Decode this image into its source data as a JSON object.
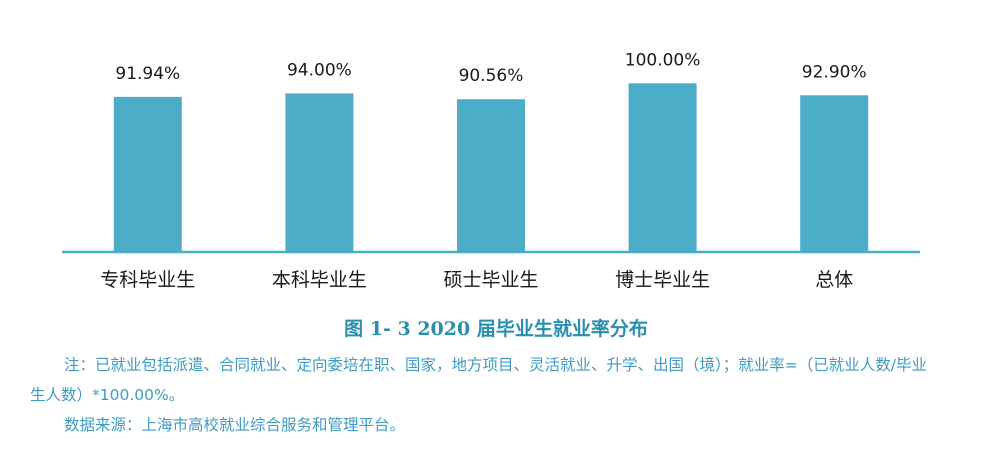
{
  "chart_data": {
    "type": "bar",
    "categories": [
      "专科毕业生",
      "本科毕业生",
      "硕士毕业生",
      "博士毕业生",
      "总体"
    ],
    "values": [
      91.94,
      94.0,
      90.56,
      100.0,
      92.9
    ],
    "value_labels": [
      "91.94%",
      "94.00%",
      "90.56%",
      "100.00%",
      "92.90%"
    ],
    "title": "图 1- 3    2020 届毕业生就业率分布",
    "xlabel": "",
    "ylabel": "",
    "ylim": [
      0,
      115
    ],
    "grid": false,
    "bar_color": "#4badc7"
  },
  "notes": {
    "note": "注：已就业包括派遣、合同就业、定向委培在职、国家，地方项目、灵活就业、升学、出国（境）；就业率=（已就业人数/毕业生人数）*100.00%。",
    "source": "数据来源：上海市高校就业综合服务和管理平台。"
  }
}
